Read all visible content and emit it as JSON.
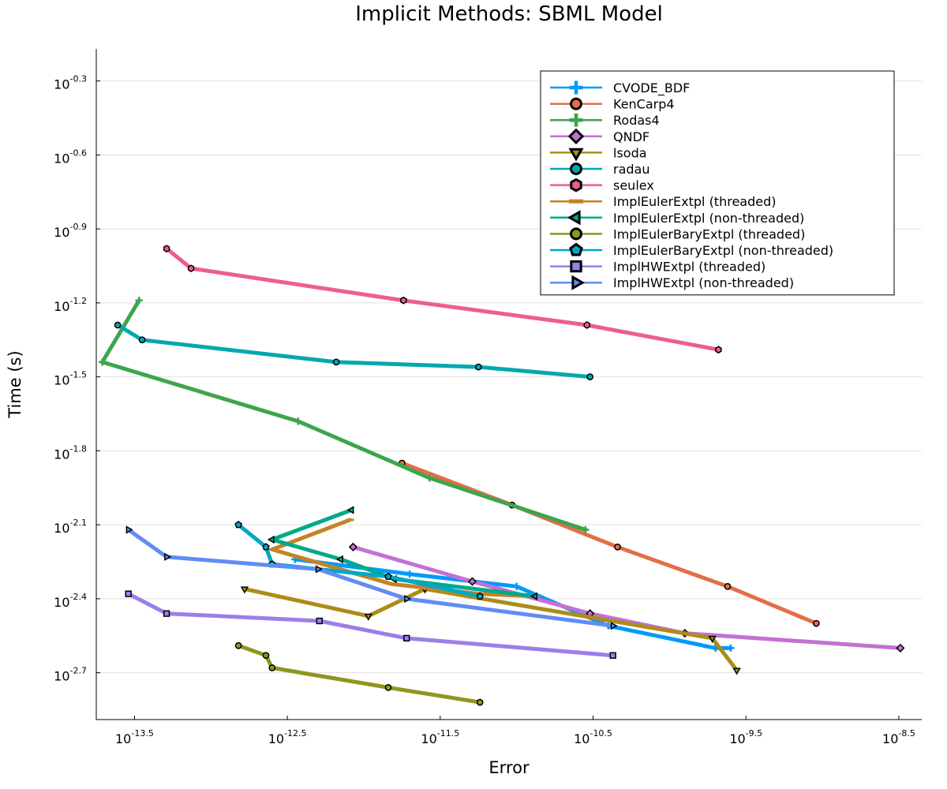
{
  "chart_data": {
    "type": "line",
    "title": "Implicit Methods: SBML Model",
    "xlabel": "Error",
    "ylabel": "Time (s)",
    "xscale": "log10",
    "yscale": "log10",
    "xlim": [
      -13.75,
      -8.35
    ],
    "ylim": [
      -2.89,
      -0.17
    ],
    "xticks": [
      -13.5,
      -12.5,
      -11.5,
      -10.5,
      -9.5,
      -8.5
    ],
    "xtick_labels": [
      "-13.5",
      "-12.5",
      "-11.5",
      "-10.5",
      "-9.5",
      "-8.5"
    ],
    "yticks": [
      -0.3,
      -0.6,
      -0.9,
      -1.2,
      -1.5,
      -1.8,
      -2.1,
      -2.4,
      -2.7
    ],
    "ytick_labels": [
      "-0.3",
      "-0.6",
      "-0.9",
      "-1.2",
      "-1.5",
      "-1.8",
      "-2.1",
      "-2.4",
      "-2.7"
    ],
    "tick_base": "10",
    "grid": true,
    "legend_position": "top-right",
    "series": [
      {
        "name": "CVODE_BDF",
        "color": "#009AFA",
        "marker": "cross",
        "points": [
          [
            -12.45,
            -2.24
          ],
          [
            -11.7,
            -2.3
          ],
          [
            -11.0,
            -2.35
          ],
          [
            -10.4,
            -2.51
          ],
          [
            -9.7,
            -2.6
          ],
          [
            -9.6,
            -2.6
          ]
        ]
      },
      {
        "name": "KenCarp4",
        "color": "#E36F47",
        "marker": "circle",
        "points": [
          [
            -11.75,
            -1.85
          ],
          [
            -11.03,
            -2.02
          ],
          [
            -10.34,
            -2.19
          ],
          [
            -9.62,
            -2.35
          ],
          [
            -9.04,
            -2.5
          ]
        ]
      },
      {
        "name": "Rodas4",
        "color": "#3EA44E",
        "marker": "cross",
        "points": [
          [
            -13.47,
            -1.19
          ],
          [
            -13.71,
            -1.44
          ],
          [
            -12.43,
            -1.68
          ],
          [
            -11.57,
            -1.91
          ],
          [
            -10.55,
            -2.12
          ]
        ]
      },
      {
        "name": "QNDF",
        "color": "#C371D2",
        "marker": "diamond",
        "points": [
          [
            -12.07,
            -2.19
          ],
          [
            -11.29,
            -2.33
          ],
          [
            -10.52,
            -2.46
          ],
          [
            -9.9,
            -2.54
          ],
          [
            -8.49,
            -2.6
          ]
        ]
      },
      {
        "name": "lsoda",
        "color": "#AC8D18",
        "marker": "triangle-down",
        "points": [
          [
            -12.78,
            -2.36
          ],
          [
            -11.97,
            -2.47
          ],
          [
            -11.6,
            -2.36
          ],
          [
            -9.72,
            -2.56
          ],
          [
            -9.56,
            -2.69
          ]
        ]
      },
      {
        "name": "radau",
        "color": "#00A9AD",
        "marker": "circle",
        "points": [
          [
            -13.61,
            -1.29
          ],
          [
            -13.45,
            -1.35
          ],
          [
            -12.18,
            -1.44
          ],
          [
            -11.25,
            -1.46
          ],
          [
            -10.52,
            -1.5
          ]
        ]
      },
      {
        "name": "seulex",
        "color": "#ED5D92",
        "marker": "hexagon",
        "points": [
          [
            -13.29,
            -0.98
          ],
          [
            -13.13,
            -1.06
          ],
          [
            -11.74,
            -1.19
          ],
          [
            -10.54,
            -1.29
          ],
          [
            -9.68,
            -1.39
          ]
        ]
      },
      {
        "name": "ImplEulerExtpl (threaded)",
        "color": "#C68225",
        "marker": "hline",
        "points": [
          [
            -12.09,
            -2.08
          ],
          [
            -12.6,
            -2.2
          ],
          [
            -11.82,
            -2.34
          ],
          [
            -11.25,
            -2.38
          ],
          [
            -10.88,
            -2.39
          ]
        ]
      },
      {
        "name": "ImplEulerExtpl (non-threaded)",
        "color": "#00A98D",
        "marker": "triangle-left",
        "points": [
          [
            -12.08,
            -2.04
          ],
          [
            -12.6,
            -2.16
          ],
          [
            -12.15,
            -2.24
          ],
          [
            -11.8,
            -2.32
          ],
          [
            -10.88,
            -2.39
          ]
        ]
      },
      {
        "name": "ImplEulerBaryExtpl (threaded)",
        "color": "#8E971D",
        "marker": "octagon",
        "points": [
          [
            -12.82,
            -2.59
          ],
          [
            -12.64,
            -2.63
          ],
          [
            -12.6,
            -2.68
          ],
          [
            -11.84,
            -2.76
          ],
          [
            -11.24,
            -2.82
          ]
        ]
      },
      {
        "name": "ImplEulerBaryExtpl (non-threaded)",
        "color": "#00A8C5",
        "marker": "pentagon",
        "points": [
          [
            -12.82,
            -2.1
          ],
          [
            -12.64,
            -2.19
          ],
          [
            -12.6,
            -2.26
          ],
          [
            -11.84,
            -2.31
          ],
          [
            -11.24,
            -2.39
          ]
        ]
      },
      {
        "name": "ImplHWExtpl (threaded)",
        "color": "#9B7FE9",
        "marker": "square",
        "points": [
          [
            -13.54,
            -2.38
          ],
          [
            -13.29,
            -2.46
          ],
          [
            -12.29,
            -2.49
          ],
          [
            -11.72,
            -2.56
          ],
          [
            -10.37,
            -2.63
          ]
        ]
      },
      {
        "name": "ImplHWExtpl (non-threaded)",
        "color": "#618CF5",
        "marker": "triangle-right",
        "points": [
          [
            -13.54,
            -2.12
          ],
          [
            -13.29,
            -2.23
          ],
          [
            -12.3,
            -2.28
          ],
          [
            -11.72,
            -2.4
          ],
          [
            -10.37,
            -2.51
          ]
        ]
      }
    ]
  }
}
